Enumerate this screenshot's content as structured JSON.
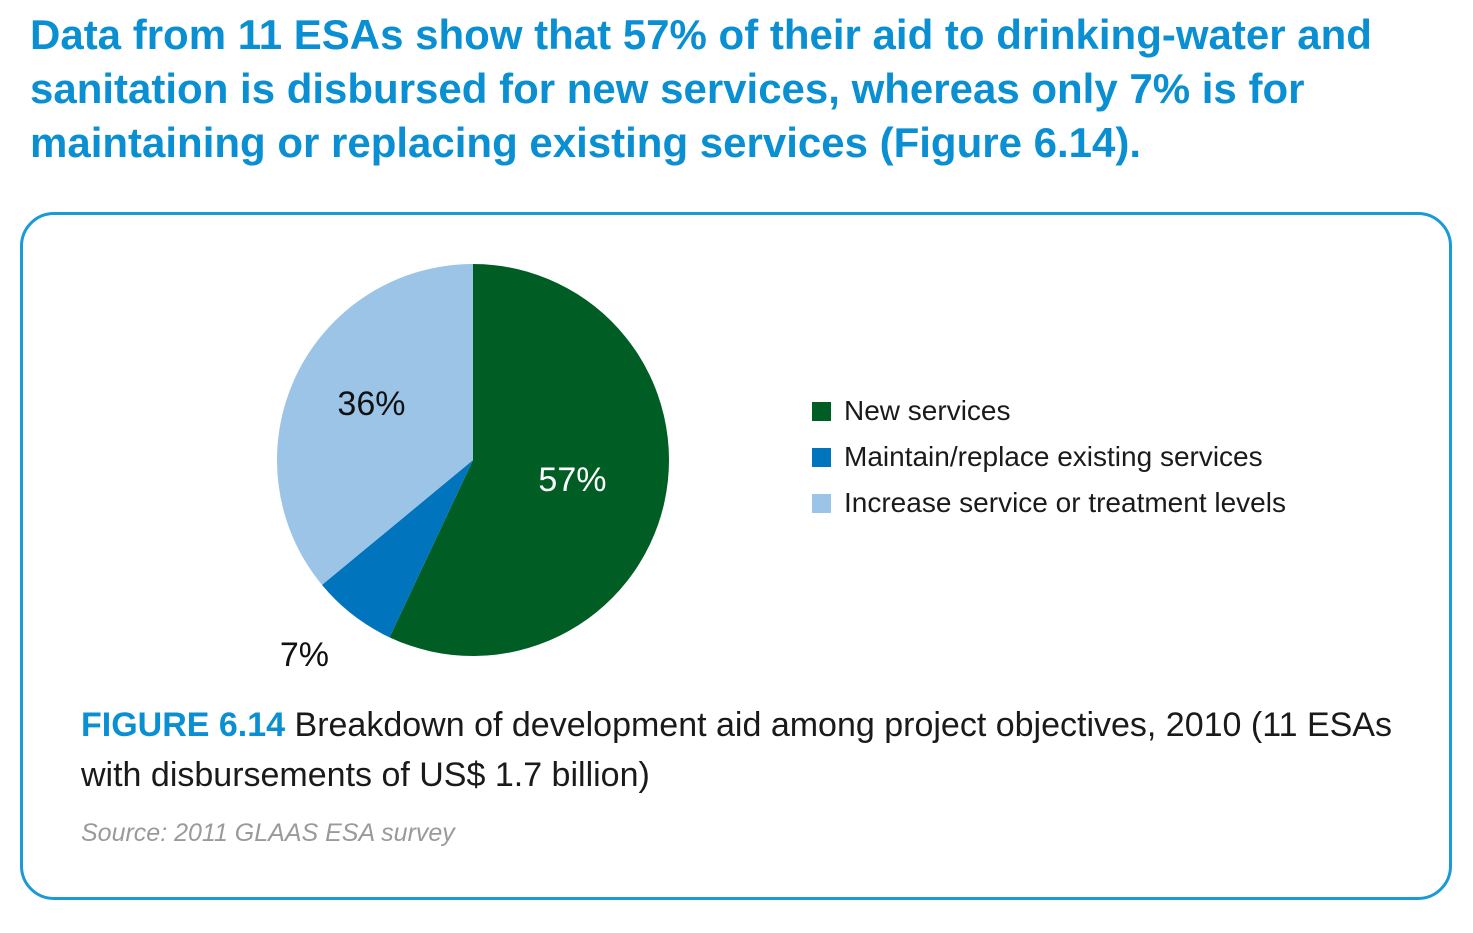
{
  "headline": "Data from 11 ESAs show that 57% of their aid to drinking-water and sanitation is disbursed for new services, whereas only 7% is for maintaining or replacing existing services (Figure 6.14).",
  "caption": {
    "label": "FIGURE 6.14",
    "text": " Breakdown of development aid among project objectives, 2010 (11 ESAs with disbursements of US$ 1.7 billion)"
  },
  "source": "Source: 2011 GLAAS ESA survey",
  "chart_data": {
    "type": "pie",
    "title": "",
    "categories": [
      "New services",
      "Maintain/replace existing services",
      "Increase service or treatment levels"
    ],
    "values": [
      57,
      7,
      36
    ],
    "labels": [
      "57%",
      "7%",
      "36%"
    ],
    "colors": [
      "#005e25",
      "#0074bd",
      "#9bc4e6"
    ],
    "label_colors": [
      "#ffffff",
      "#111111",
      "#111111"
    ],
    "start_angle_deg": 0,
    "direction": "clockwise",
    "legend_position": "right",
    "unit": "%"
  }
}
